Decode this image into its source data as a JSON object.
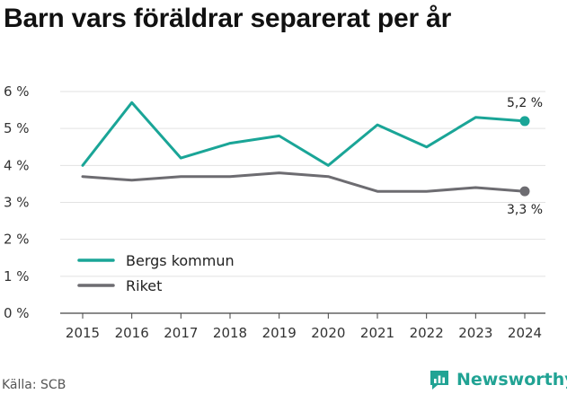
{
  "title": "Barn vars föräldrar separerat per år",
  "source": "Källa: SCB",
  "brand": "Newsworthy",
  "brand_icon": "newsworthy-logo-icon",
  "chart_data": {
    "type": "line",
    "x": [
      "2015",
      "2016",
      "2017",
      "2018",
      "2019",
      "2020",
      "2021",
      "2022",
      "2023",
      "2024"
    ],
    "y_ticks": [
      "0 %",
      "1 %",
      "2 %",
      "3 %",
      "4 %",
      "5 %",
      "6 %"
    ],
    "ylim": [
      0,
      6
    ],
    "grid": true,
    "legend_position": "bottom-left",
    "series": [
      {
        "name": "Bergs kommun",
        "color": "#1aa597",
        "values": [
          4.0,
          5.7,
          4.2,
          4.6,
          4.8,
          4.0,
          5.1,
          4.5,
          5.3,
          5.2
        ],
        "end_label": "5,2 %"
      },
      {
        "name": "Riket",
        "color": "#6d6c71",
        "values": [
          3.7,
          3.6,
          3.7,
          3.7,
          3.8,
          3.7,
          3.3,
          3.3,
          3.4,
          3.3
        ],
        "end_label": "3,3 %"
      }
    ]
  }
}
